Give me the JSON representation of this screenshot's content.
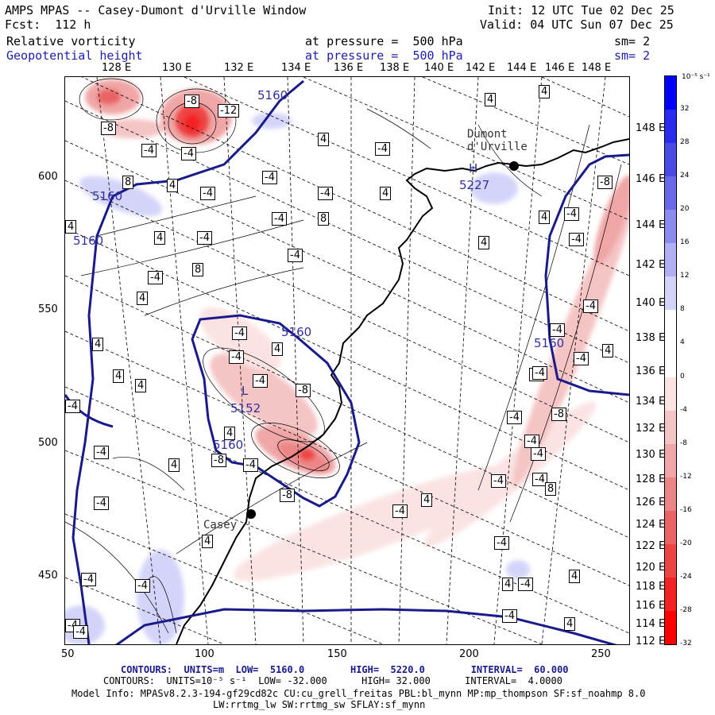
{
  "header": {
    "title": "AMPS MPAS -- Casey-Dumont d'Urville Window",
    "fcst": "Fcst:  112 h",
    "init": "Init: 12 UTC Tue 02 Dec 25",
    "valid": "Valid: 04 UTC Sun 07 Dec 25",
    "field1_name": "Relative vorticity",
    "field1_level": "at pressure =  500 hPa",
    "field1_sm": "sm= 2",
    "field2_name": "Geopotential height",
    "field2_level": "at pressure =  500 hPa",
    "field2_sm": "sm= 2"
  },
  "top_lon_labels": [
    "128 E",
    "130 E",
    "132 E",
    "134 E",
    "136 E",
    "138 E",
    "140 E",
    "142 E",
    "144 E",
    "146 E",
    "148 E"
  ],
  "right_lat_labels": [
    "148 E",
    "146 E",
    "144 E",
    "142 E",
    "140 E",
    "138 E",
    "136 E",
    "134 E",
    "132 E",
    "130 E",
    "128 E",
    "126 E",
    "124 E",
    "122 E",
    "120 E",
    "118 E",
    "116 E",
    "114 E",
    "112 E"
  ],
  "y_ticks": [
    "600",
    "550",
    "500",
    "450"
  ],
  "x_ticks": [
    "50",
    "100",
    "150",
    "200",
    "250"
  ],
  "colorbar": {
    "units_label": "10⁻⁵ s⁻¹",
    "labels": [
      "32",
      "28",
      "24",
      "20",
      "16",
      "12",
      "8",
      "4",
      "0",
      "-4",
      "-8",
      "-12",
      "-16",
      "-20",
      "-24",
      "-28",
      "-32"
    ],
    "colors": [
      "#0000ff",
      "#2a2af0",
      "#4a4ae8",
      "#6a6ae8",
      "#8c8cee",
      "#b0b0f4",
      "#d4d4fa",
      "#ffffff",
      "#ffffff",
      "#fbe3e3",
      "#f5c4c4",
      "#f0a6a6",
      "#ec8686",
      "#ea6464",
      "#ee4444",
      "#f42222",
      "#ff0000"
    ]
  },
  "places": {
    "dumont": "Dumont\nd'Urville",
    "casey": "Casey"
  },
  "pressure_markers": {
    "H": "H",
    "L": "L",
    "high_value": "5227",
    "low_value": "5152"
  },
  "gh_labels": [
    "5160",
    "5160",
    "5160",
    "5160",
    "5160",
    "5160"
  ],
  "vort_boxes": [
    "-8",
    "-12",
    "-8",
    "-4",
    "-4",
    "4",
    "8",
    "4",
    "-4",
    "-4",
    "-4",
    "-4",
    "4",
    "4",
    "-4",
    "-4",
    "8",
    "-4",
    "-4",
    "4",
    "8",
    "4",
    "4",
    "4",
    "4",
    "-8",
    "-4",
    "-4",
    "-4",
    "-4",
    "-4",
    "4",
    "-4",
    "-4",
    "-8",
    "-4",
    "4",
    "-4",
    "-8",
    "-4",
    "-4",
    "-8",
    "-8",
    "-4",
    "-4",
    "-4",
    "-4",
    "-4",
    "4",
    "-4",
    "-4",
    "4",
    "4",
    "-4",
    "-4",
    "-4",
    "4",
    "-4",
    "4",
    "-4",
    "4",
    "4",
    "4",
    "-4",
    "4",
    "-4",
    "4",
    "8",
    "-4",
    "4",
    "-4"
  ],
  "footer": {
    "line1": "CONTOURS:  UNITS=m  LOW=  5160.0        HIGH=  5220.0        INTERVAL=  60.000",
    "line2": "CONTOURS:  UNITS=10⁻⁵ s⁻¹  LOW= -32.000      HIGH= 32.000      INTERVAL=  4.0000",
    "line3": "Model Info: MPASv8.2.3-194-gf29cd82c CU:cu_grell_freitas PBL:bl_mynn MP:mp_thompson SF:sf_noahmp 8.0",
    "line4": "LW:rrtmg_lw SW:rrtmg_sw SFLAY:sf_mynn"
  }
}
